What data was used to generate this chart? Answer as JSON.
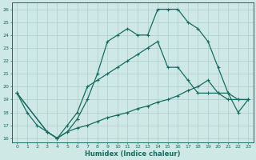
{
  "xlabel": "Humidex (Indice chaleur)",
  "background_color": "#cde8e5",
  "grid_color": "#aecfcc",
  "line_color": "#1a6b60",
  "xlim": [
    -0.5,
    23.5
  ],
  "ylim": [
    15.7,
    26.5
  ],
  "xticks": [
    0,
    1,
    2,
    3,
    4,
    5,
    6,
    7,
    8,
    9,
    10,
    11,
    12,
    13,
    14,
    15,
    16,
    17,
    18,
    19,
    20,
    21,
    22,
    23
  ],
  "yticks": [
    16,
    17,
    18,
    19,
    20,
    21,
    22,
    23,
    24,
    25,
    26
  ],
  "line1_x": [
    0,
    1,
    2,
    3,
    4,
    5,
    6,
    7,
    8,
    9,
    10,
    11,
    12,
    13,
    14,
    15,
    16,
    17,
    18,
    19,
    20,
    21,
    22,
    23
  ],
  "line1_y": [
    19.5,
    18.0,
    17.0,
    16.5,
    16.0,
    16.5,
    17.5,
    19.0,
    21.0,
    23.5,
    24.0,
    24.5,
    24.0,
    24.0,
    26.0,
    26.0,
    26.0,
    25.0,
    24.5,
    23.5,
    21.5,
    19.5,
    18.0,
    19.0
  ],
  "line2_x": [
    0,
    3,
    4,
    5,
    6,
    7,
    8,
    9,
    10,
    11,
    12,
    13,
    14,
    15,
    16,
    17,
    18,
    19,
    20,
    21,
    22,
    23
  ],
  "line2_y": [
    19.5,
    16.5,
    16.0,
    17.0,
    18.0,
    20.0,
    20.5,
    21.0,
    21.5,
    22.0,
    22.5,
    23.0,
    23.5,
    21.5,
    21.5,
    20.5,
    19.5,
    19.5,
    19.5,
    19.5,
    19.0,
    19.0
  ],
  "line3_x": [
    0,
    3,
    4,
    5,
    6,
    7,
    8,
    9,
    10,
    11,
    12,
    13,
    14,
    15,
    16,
    17,
    18,
    19,
    20,
    21,
    22,
    23
  ],
  "line3_y": [
    19.5,
    16.5,
    16.0,
    16.5,
    16.8,
    17.0,
    17.3,
    17.6,
    17.8,
    18.0,
    18.3,
    18.5,
    18.8,
    19.0,
    19.3,
    19.7,
    20.0,
    20.5,
    19.5,
    19.0,
    19.0,
    19.0
  ]
}
